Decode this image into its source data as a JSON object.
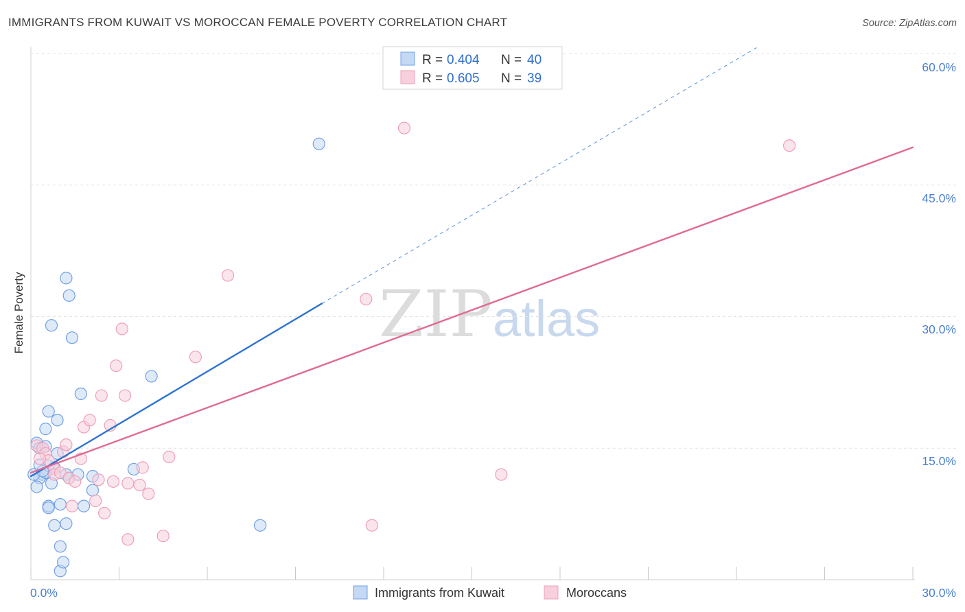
{
  "chart_data": {
    "type": "scatter",
    "title": "IMMIGRANTS FROM KUWAIT VS MOROCCAN FEMALE POVERTY CORRELATION CHART",
    "source": "Source: ZipAtlas.com",
    "xlabel": "",
    "ylabel": "Female Poverty",
    "xlim": [
      0,
      30
    ],
    "ylim": [
      0,
      60
    ],
    "x_tick_labels": [
      "0.0%",
      "30.0%"
    ],
    "y_ticks": [
      15,
      30,
      45,
      60
    ],
    "y_tick_labels": [
      "15.0%",
      "30.0%",
      "45.0%",
      "60.0%"
    ],
    "grid": true,
    "watermark": {
      "part1": "ZIP",
      "part2": "atlas"
    },
    "legend_top": [
      {
        "r_label": "R =",
        "r_value": "0.404",
        "n_label": "N =",
        "n_value": "40"
      },
      {
        "r_label": "R =",
        "r_value": "0.605",
        "n_label": "N =",
        "n_value": "39"
      }
    ],
    "series": [
      {
        "name": "Immigrants from Kuwait",
        "color": "#6fa0e6",
        "fill": "#c4d9f4",
        "line_color": "#2e74cf",
        "trend": {
          "x0": 0.0,
          "y0": 11.8,
          "x1": 9.9,
          "y1": 31.5,
          "dash_to_x": 24.7,
          "dash_to_y": 60.7
        },
        "points": [
          [
            0.2,
            15.6
          ],
          [
            0.3,
            15.0
          ],
          [
            0.5,
            15.2
          ],
          [
            0.4,
            12.0
          ],
          [
            0.3,
            11.6
          ],
          [
            0.5,
            12.2
          ],
          [
            0.6,
            13.0
          ],
          [
            0.2,
            10.6
          ],
          [
            0.5,
            17.2
          ],
          [
            0.6,
            19.2
          ],
          [
            0.8,
            12.8
          ],
          [
            0.7,
            11.0
          ],
          [
            0.8,
            6.2
          ],
          [
            0.9,
            18.2
          ],
          [
            0.9,
            14.4
          ],
          [
            1.0,
            8.6
          ],
          [
            1.0,
            3.8
          ],
          [
            1.0,
            1.0
          ],
          [
            1.1,
            2.0
          ],
          [
            1.2,
            6.4
          ],
          [
            0.6,
            8.4
          ],
          [
            1.2,
            12.0
          ],
          [
            1.3,
            11.6
          ],
          [
            0.7,
            29.0
          ],
          [
            1.2,
            34.4
          ],
          [
            1.3,
            32.4
          ],
          [
            1.4,
            27.6
          ],
          [
            1.7,
            21.2
          ],
          [
            1.8,
            8.4
          ],
          [
            2.1,
            10.2
          ],
          [
            2.1,
            11.8
          ],
          [
            1.6,
            12.0
          ],
          [
            3.5,
            12.6
          ],
          [
            4.1,
            23.2
          ],
          [
            7.8,
            6.2
          ],
          [
            9.8,
            49.7
          ],
          [
            0.1,
            12.0
          ],
          [
            0.4,
            12.4
          ],
          [
            0.6,
            8.2
          ],
          [
            0.3,
            13.1
          ]
        ]
      },
      {
        "name": "Moroccans",
        "color": "#eda0b8",
        "fill": "#f8cfdc",
        "line_color": "#e06b95",
        "trend": {
          "x0": 0.0,
          "y0": 12.2,
          "x1": 30.0,
          "y1": 49.3
        },
        "points": [
          [
            0.2,
            15.3
          ],
          [
            0.4,
            15.0
          ],
          [
            0.5,
            14.4
          ],
          [
            0.6,
            13.6
          ],
          [
            0.8,
            12.6
          ],
          [
            0.8,
            12.0
          ],
          [
            1.0,
            12.2
          ],
          [
            1.1,
            14.6
          ],
          [
            1.2,
            15.4
          ],
          [
            1.3,
            11.6
          ],
          [
            1.4,
            8.4
          ],
          [
            1.5,
            11.2
          ],
          [
            1.7,
            13.8
          ],
          [
            1.8,
            17.4
          ],
          [
            2.0,
            18.2
          ],
          [
            2.2,
            9.0
          ],
          [
            2.3,
            11.4
          ],
          [
            2.4,
            21.0
          ],
          [
            2.5,
            7.6
          ],
          [
            2.7,
            17.6
          ],
          [
            2.8,
            11.2
          ],
          [
            2.9,
            24.4
          ],
          [
            3.1,
            28.6
          ],
          [
            3.2,
            21.0
          ],
          [
            3.3,
            11.0
          ],
          [
            3.3,
            4.6
          ],
          [
            3.7,
            10.8
          ],
          [
            3.8,
            12.8
          ],
          [
            4.0,
            9.8
          ],
          [
            4.5,
            5.0
          ],
          [
            4.7,
            14.0
          ],
          [
            5.6,
            25.4
          ],
          [
            6.7,
            34.7
          ],
          [
            11.4,
            32.0
          ],
          [
            11.6,
            6.2
          ],
          [
            12.7,
            51.5
          ],
          [
            16.0,
            12.0
          ],
          [
            25.8,
            49.5
          ],
          [
            0.3,
            13.8
          ]
        ]
      }
    ]
  }
}
